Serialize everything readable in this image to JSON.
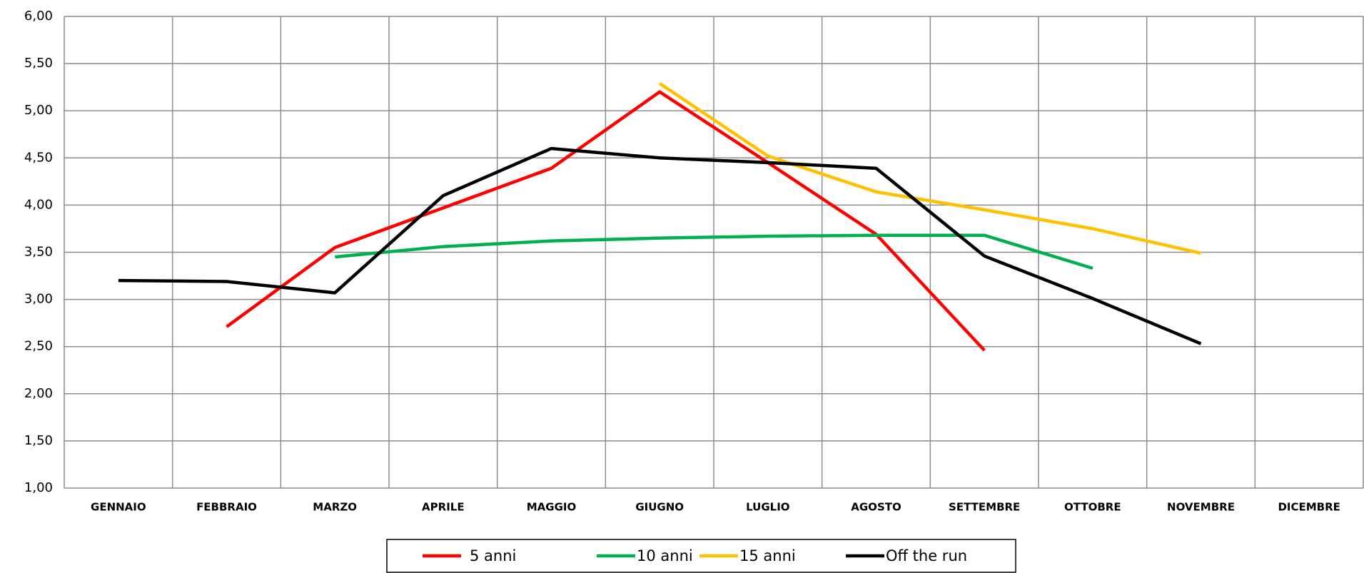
{
  "chart_data": {
    "type": "line",
    "categories": [
      "GENNAIO",
      "FEBBRAIO",
      "MARZO",
      "APRILE",
      "MAGGIO",
      "GIUGNO",
      "LUGLIO",
      "AGOSTO",
      "SETTEMBRE",
      "OTTOBRE",
      "NOVEMBRE",
      "DICEMBRE"
    ],
    "series": [
      {
        "name": "5 anni",
        "color": "#ff0000",
        "values": [
          null,
          2.71,
          3.55,
          3.97,
          4.39,
          5.2,
          4.45,
          3.69,
          2.46,
          null,
          null,
          null
        ]
      },
      {
        "name": "10 anni",
        "color": "#00b050",
        "values": [
          null,
          null,
          3.45,
          3.56,
          3.62,
          3.65,
          3.67,
          3.68,
          3.68,
          3.33,
          null,
          null
        ]
      },
      {
        "name": "15 anni",
        "color": "#ffc000",
        "values": [
          null,
          null,
          null,
          null,
          null,
          5.29,
          4.52,
          4.14,
          3.95,
          3.75,
          3.49,
          null
        ]
      },
      {
        "name": "Off the run",
        "color": "#000000",
        "values": [
          3.2,
          3.19,
          3.07,
          4.1,
          4.6,
          4.5,
          4.45,
          4.39,
          3.46,
          3.01,
          2.53,
          null
        ]
      }
    ],
    "ylim": [
      1,
      6
    ],
    "yticks": [
      {
        "value": 1,
        "label": "1,00"
      },
      {
        "value": 1.5,
        "label": "1,50"
      },
      {
        "value": 2,
        "label": "2,00"
      },
      {
        "value": 2.5,
        "label": "2,50"
      },
      {
        "value": 3,
        "label": "3,00"
      },
      {
        "value": 3.5,
        "label": "3,50"
      },
      {
        "value": 4,
        "label": "4,00"
      },
      {
        "value": 4.5,
        "label": "4,50"
      },
      {
        "value": 5,
        "label": "5,00"
      },
      {
        "value": 5.5,
        "label": "5,50"
      },
      {
        "value": 6,
        "label": "6,00"
      }
    ],
    "grid": true,
    "legend": "bottom"
  }
}
